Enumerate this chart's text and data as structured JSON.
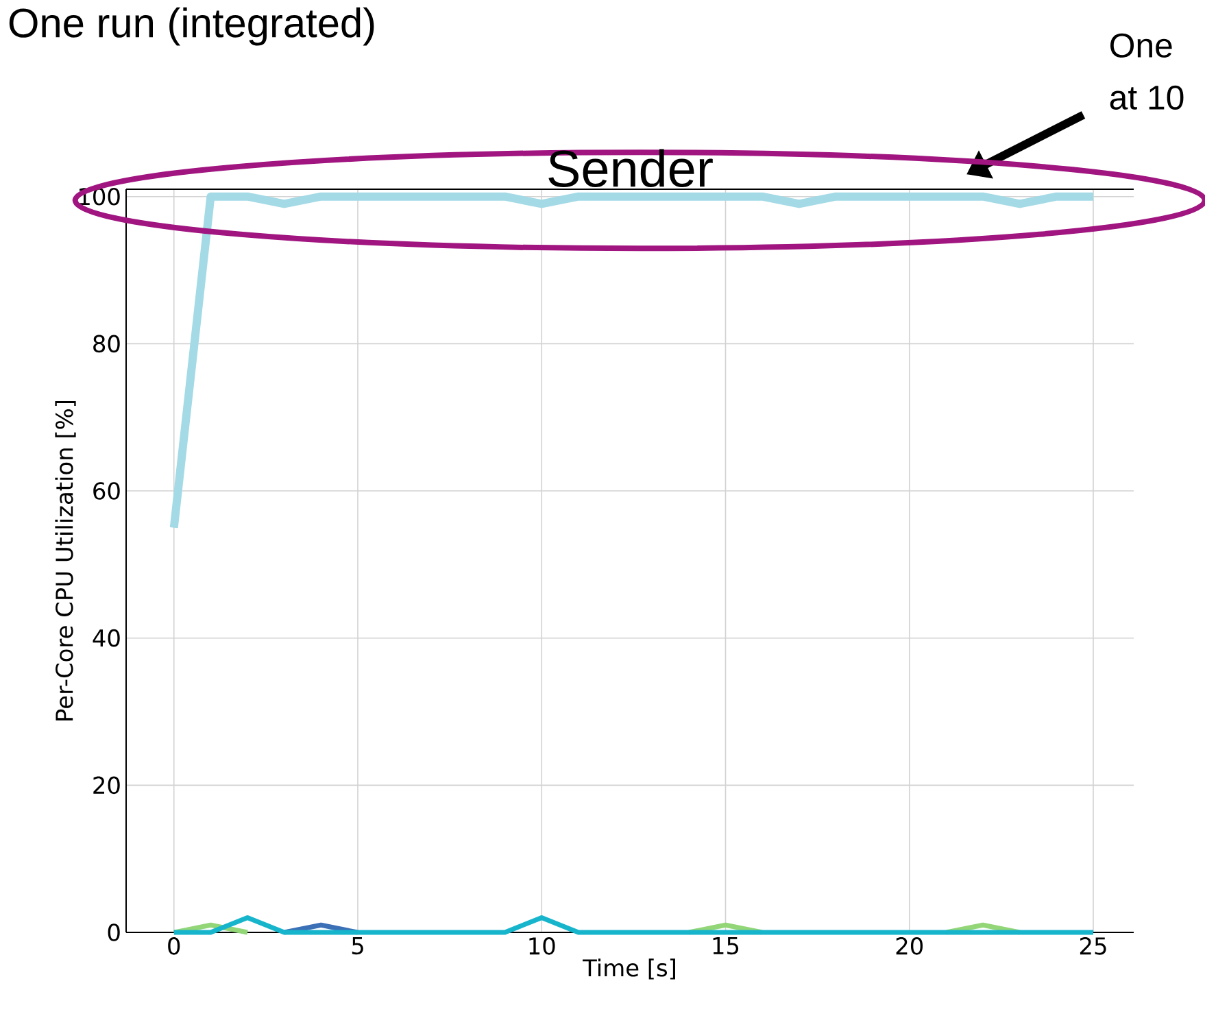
{
  "chart_data": {
    "type": "line",
    "title": "Sender",
    "xlabel": "Time [s]",
    "ylabel": "Per-Core CPU Utilization [%]",
    "x": [
      0,
      1,
      2,
      3,
      4,
      5,
      6,
      7,
      8,
      9,
      10,
      11,
      12,
      13,
      14,
      15,
      16,
      17,
      18,
      19,
      20,
      21,
      22,
      23,
      24,
      25
    ],
    "series": [
      {
        "color": "#a3dae6",
        "values": [
          55,
          100,
          100,
          99,
          100,
          100,
          100,
          100,
          100,
          100,
          99,
          100,
          100,
          100,
          100,
          100,
          100,
          99,
          100,
          100,
          100,
          100,
          100,
          99,
          100,
          100
        ]
      },
      {
        "color": "#93d678",
        "values": [
          0,
          1,
          0,
          null,
          null,
          null,
          null,
          null,
          null,
          null,
          null,
          null,
          null,
          null,
          0,
          1,
          0,
          null,
          null,
          null,
          null,
          0,
          1,
          0,
          null,
          null
        ]
      },
      {
        "color": "#3b6fb6",
        "values": [
          null,
          null,
          null,
          0,
          1,
          0,
          null,
          null,
          null,
          null,
          null,
          null,
          null,
          null,
          null,
          null,
          null,
          null,
          null,
          null,
          null,
          null,
          null,
          null,
          null,
          null
        ]
      },
      {
        "color": "#17b5cc",
        "values": [
          0,
          0,
          2,
          0,
          0,
          0,
          0,
          0,
          0,
          0,
          2,
          0,
          0,
          0,
          0,
          0,
          0,
          0,
          0,
          0,
          0,
          0,
          0,
          0,
          0,
          0
        ]
      }
    ],
    "xlim": [
      -1.3,
      26.1
    ],
    "ylim": [
      0,
      101
    ],
    "xticks": [
      0,
      5,
      10,
      15,
      20,
      25
    ],
    "yticks": [
      0,
      20,
      40,
      60,
      80,
      100
    ],
    "grid": true,
    "marker": "none",
    "line_style": "solid",
    "annotations": [
      "One run (integrated)",
      "One",
      "at 10"
    ]
  }
}
